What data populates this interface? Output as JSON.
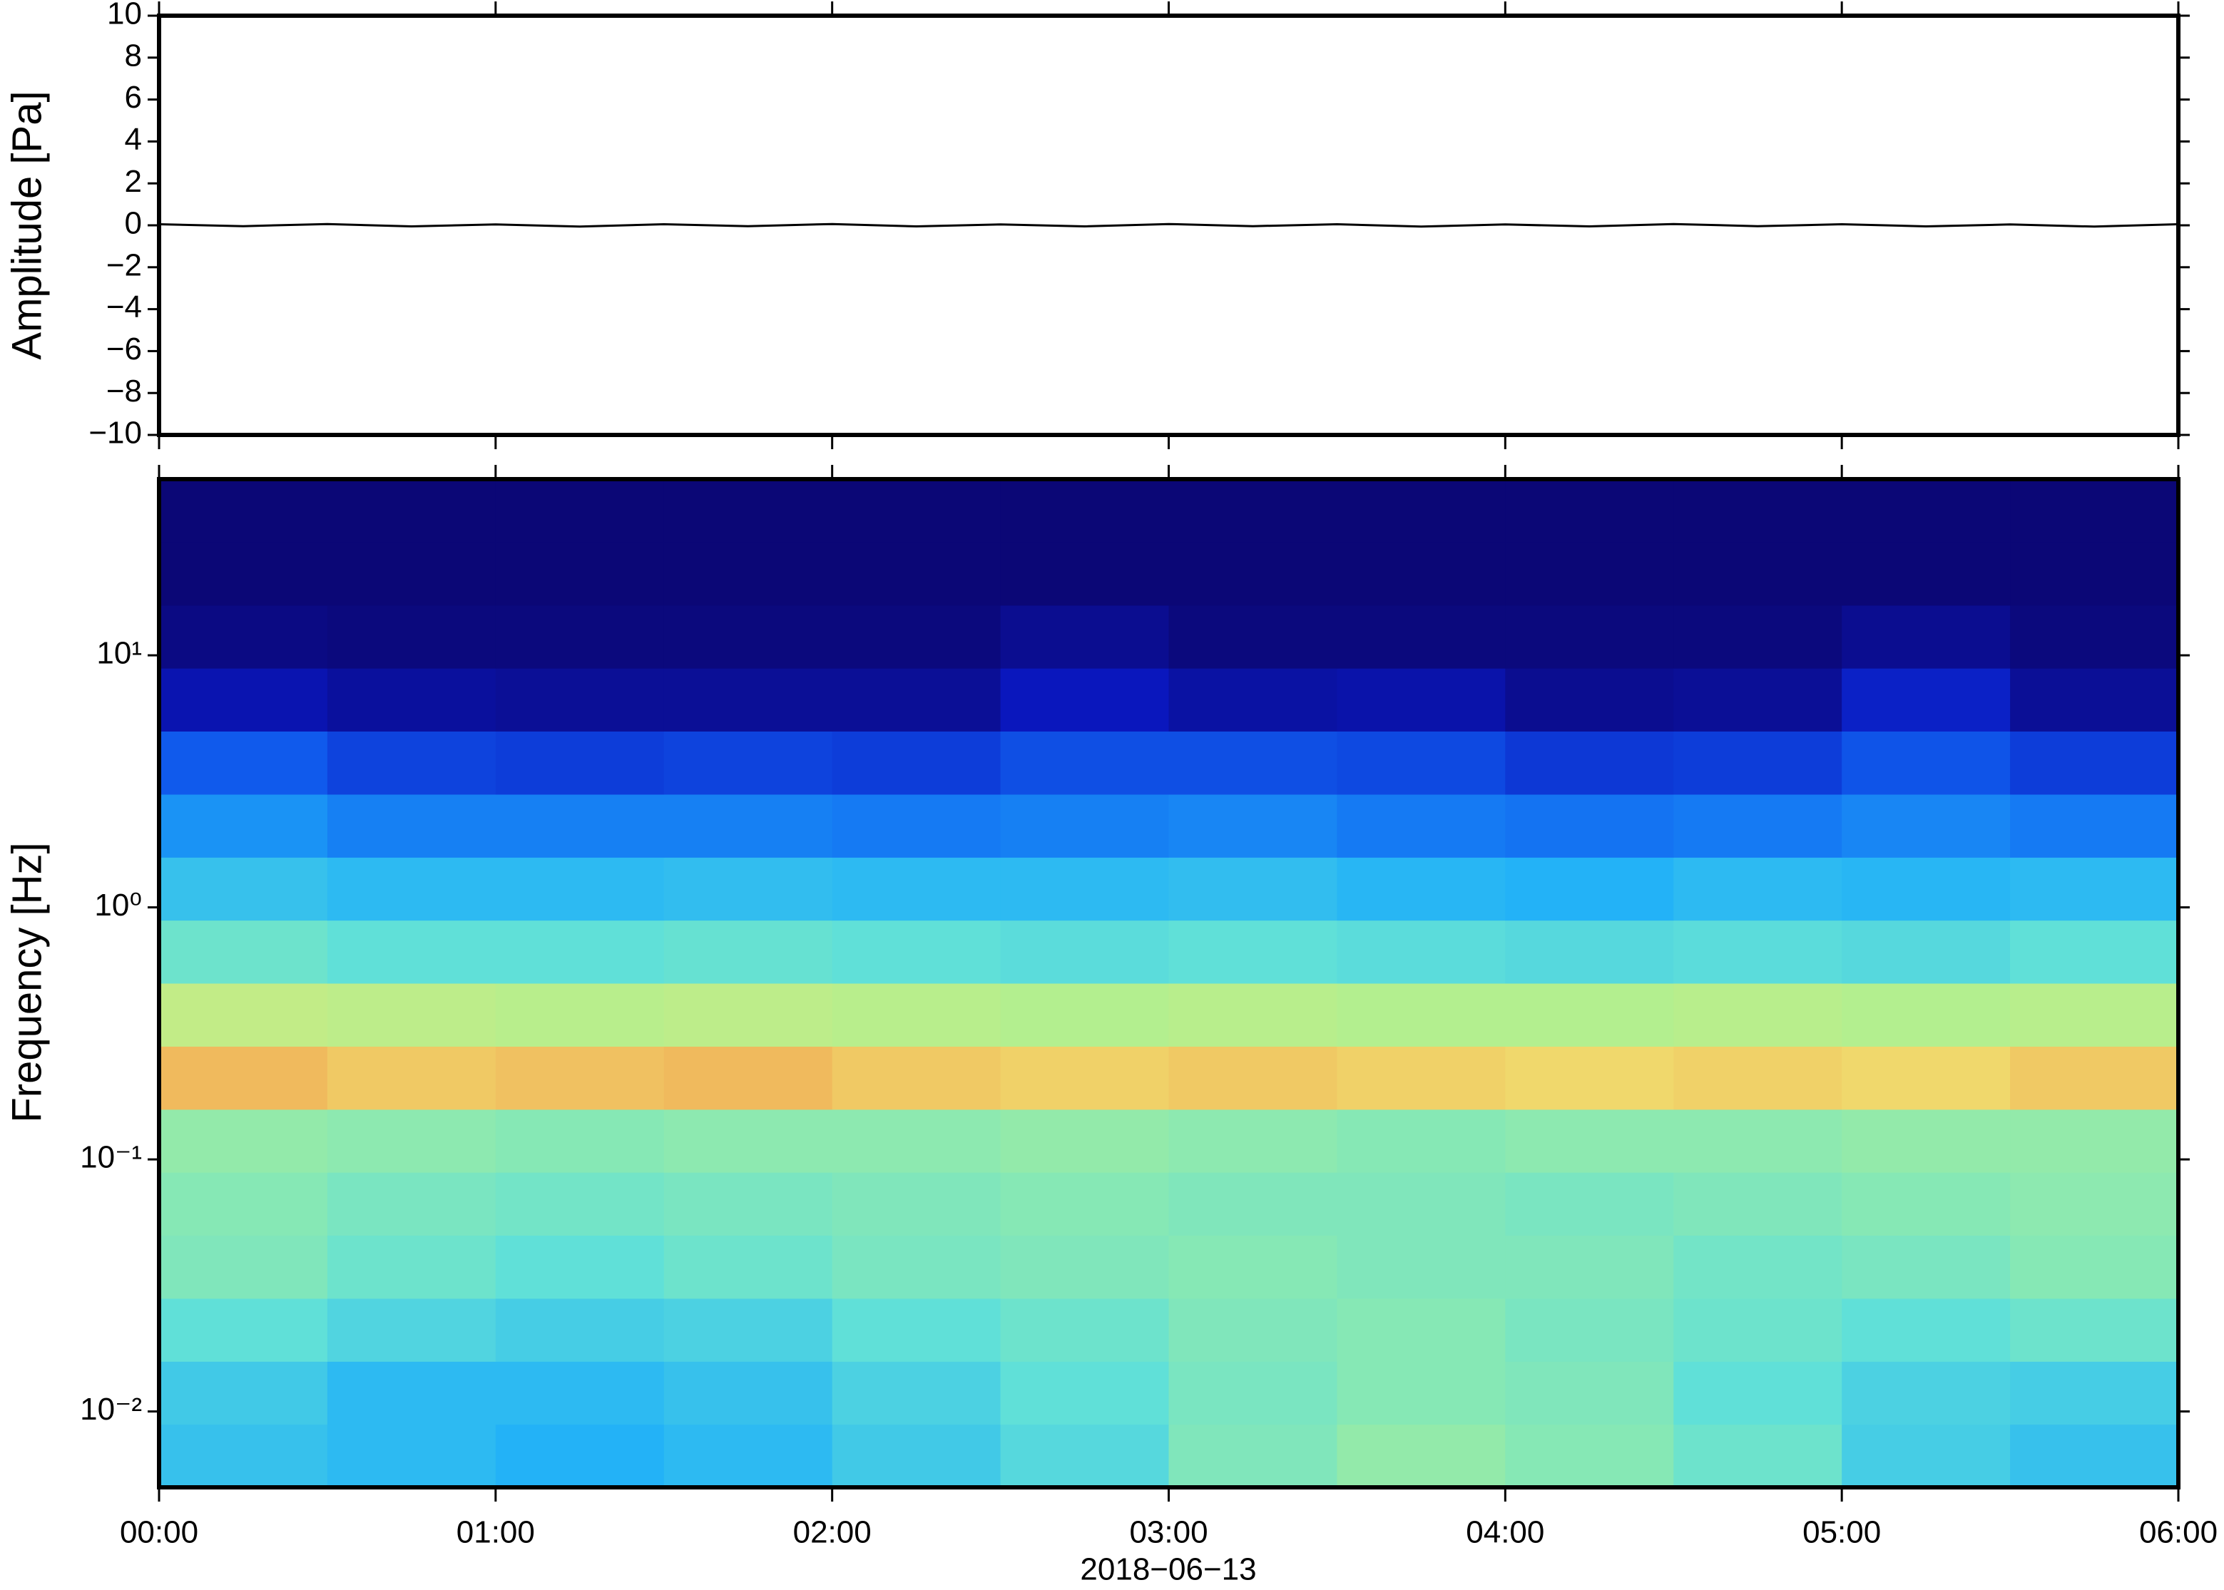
{
  "chart_data": [
    {
      "type": "line",
      "ylabel": "Amplitude [Pa]",
      "xlim": [
        0,
        6
      ],
      "xticks": [
        0,
        1,
        2,
        3,
        4,
        5,
        6
      ],
      "ylim": [
        -10,
        10
      ],
      "yticks": [
        {
          "value": -10,
          "label": "−10"
        },
        {
          "value": -8,
          "label": "−8"
        },
        {
          "value": -6,
          "label": "−6"
        },
        {
          "value": -4,
          "label": "−4"
        },
        {
          "value": -2,
          "label": "−2"
        },
        0,
        2,
        4,
        6,
        8,
        10
      ],
      "series": [
        {
          "color": "#000000",
          "x": [
            0,
            0.25,
            0.5,
            0.75,
            1,
            1.25,
            1.5,
            1.75,
            2,
            2.25,
            2.5,
            2.75,
            3,
            3.25,
            3.5,
            3.75,
            4,
            4.25,
            4.5,
            4.75,
            5,
            5.25,
            5.5,
            5.75,
            6
          ],
          "values": [
            0.05,
            -0.04,
            0.06,
            -0.05,
            0.04,
            -0.06,
            0.05,
            -0.04,
            0.06,
            -0.05,
            0.04,
            -0.05,
            0.06,
            -0.04,
            0.05,
            -0.06,
            0.04,
            -0.05,
            0.06,
            -0.04,
            0.05,
            -0.05,
            0.04,
            -0.06,
            0.05
          ]
        }
      ]
    },
    {
      "type": "heatmap",
      "ylabel": "Frequency [Hz]",
      "xlabel": "2018−06−13",
      "xlim": [
        0,
        6
      ],
      "xticks": [
        {
          "value": 0,
          "label": "00:00"
        },
        {
          "value": 1,
          "label": "01:00"
        },
        {
          "value": 2,
          "label": "02:00"
        },
        {
          "value": 3,
          "label": "03:00"
        },
        {
          "value": 4,
          "label": "04:00"
        },
        {
          "value": 5,
          "label": "05:00"
        },
        {
          "value": 6,
          "label": "06:00"
        }
      ],
      "ylim": [
        0.005,
        50
      ],
      "log_y": true,
      "yticks": [
        {
          "value": 0.01,
          "label": "10⁻²"
        },
        {
          "value": 0.1,
          "label": "10⁻¹"
        },
        {
          "value": 1,
          "label": "10⁰"
        },
        {
          "value": 10,
          "label": "10¹"
        }
      ],
      "x_edges": [
        0,
        0.5,
        1,
        1.5,
        2,
        2.5,
        3,
        3.5,
        4,
        4.5,
        5,
        5.5,
        6
      ],
      "y_edges": [
        0.005,
        0.00889,
        0.0158,
        0.0281,
        0.05,
        0.0889,
        0.158,
        0.281,
        0.5,
        0.889,
        1.58,
        2.81,
        5,
        8.89,
        15.8,
        28.1,
        50
      ],
      "zlim": [
        0,
        1
      ],
      "colormap": [
        "#0b0670",
        "#0a18c0",
        "#1060f0",
        "#20b0f8",
        "#60e0d8",
        "#b0f090",
        "#f0e070",
        "#f08040",
        "#c02020"
      ],
      "z": [
        [
          0.42,
          0.4,
          0.38,
          0.4,
          0.44,
          0.48,
          0.55,
          0.58,
          0.56,
          0.52,
          0.45,
          0.42
        ],
        [
          0.44,
          0.4,
          0.4,
          0.42,
          0.46,
          0.5,
          0.54,
          0.56,
          0.55,
          0.5,
          0.46,
          0.45
        ],
        [
          0.5,
          0.47,
          0.45,
          0.46,
          0.5,
          0.52,
          0.55,
          0.56,
          0.54,
          0.52,
          0.5,
          0.52
        ],
        [
          0.55,
          0.52,
          0.5,
          0.52,
          0.54,
          0.55,
          0.56,
          0.55,
          0.55,
          0.53,
          0.54,
          0.56
        ],
        [
          0.56,
          0.54,
          0.53,
          0.54,
          0.55,
          0.56,
          0.55,
          0.55,
          0.54,
          0.55,
          0.56,
          0.57
        ],
        [
          0.58,
          0.57,
          0.56,
          0.57,
          0.57,
          0.58,
          0.57,
          0.56,
          0.57,
          0.57,
          0.58,
          0.58
        ],
        [
          0.8,
          0.78,
          0.79,
          0.8,
          0.78,
          0.77,
          0.78,
          0.77,
          0.76,
          0.77,
          0.76,
          0.78
        ],
        [
          0.66,
          0.65,
          0.64,
          0.65,
          0.64,
          0.63,
          0.64,
          0.63,
          0.63,
          0.64,
          0.63,
          0.64
        ],
        [
          0.52,
          0.5,
          0.5,
          0.51,
          0.5,
          0.49,
          0.5,
          0.49,
          0.48,
          0.49,
          0.48,
          0.5
        ],
        [
          0.42,
          0.4,
          0.4,
          0.41,
          0.4,
          0.4,
          0.41,
          0.39,
          0.38,
          0.4,
          0.39,
          0.4
        ],
        [
          0.33,
          0.3,
          0.3,
          0.3,
          0.29,
          0.3,
          0.31,
          0.29,
          0.28,
          0.29,
          0.31,
          0.29
        ],
        [
          0.24,
          0.2,
          0.19,
          0.2,
          0.19,
          0.22,
          0.22,
          0.21,
          0.18,
          0.19,
          0.23,
          0.19
        ],
        [
          0.1,
          0.07,
          0.06,
          0.06,
          0.06,
          0.12,
          0.08,
          0.09,
          0.05,
          0.06,
          0.14,
          0.06
        ],
        [
          0.03,
          0.02,
          0.02,
          0.02,
          0.02,
          0.05,
          0.02,
          0.02,
          0.02,
          0.02,
          0.05,
          0.02
        ],
        [
          0.01,
          0.01,
          0.01,
          0.01,
          0.01,
          0.01,
          0.01,
          0.01,
          0.01,
          0.01,
          0.01,
          0.01
        ],
        [
          0.01,
          0.01,
          0.01,
          0.01,
          0.01,
          0.01,
          0.01,
          0.01,
          0.01,
          0.01,
          0.01,
          0.01
        ]
      ]
    }
  ]
}
